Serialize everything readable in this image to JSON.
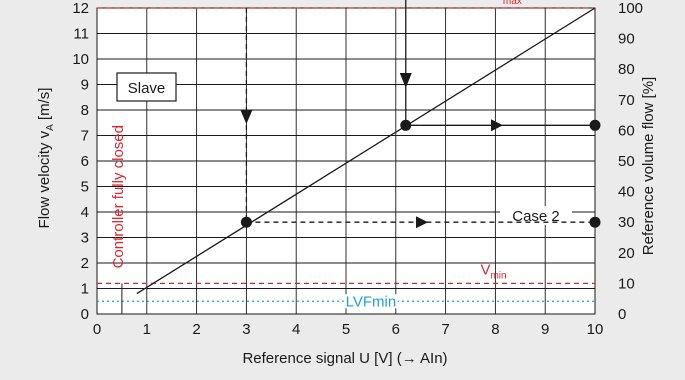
{
  "chart_data": {
    "type": "line",
    "xlabel": "Reference signal U [V] (→ AIn)",
    "ylabel_left": "Flow velocity v",
    "ylabel_left_subscript": "A",
    "ylabel_left_unit": " [m/s]",
    "ylabel_right": "Reference volume flow [%]",
    "xlim": [
      0,
      10
    ],
    "ylim_left": [
      0,
      12
    ],
    "ylim_right": [
      0,
      100
    ],
    "x_ticks": [
      0,
      1,
      2,
      3,
      4,
      5,
      6,
      7,
      8,
      9,
      10
    ],
    "y_left_ticks": [
      0,
      1,
      2,
      3,
      4,
      5,
      6,
      7,
      8,
      9,
      10,
      11,
      12
    ],
    "y_right_ticks": [
      0,
      10,
      20,
      30,
      40,
      50,
      60,
      70,
      80,
      90,
      100
    ],
    "grid": true,
    "colors": {
      "line": "#1a1a1a",
      "limit": "#d7282f",
      "lvf": "#1ea0d8",
      "controller_label": "#d7282f",
      "grid": "#1a1a1a",
      "background": "#ebebeb",
      "plot_background": "#ffffff"
    },
    "characteristic_line": {
      "x": [
        0.8,
        10
      ],
      "y": [
        0.8,
        12
      ]
    },
    "vmax": {
      "value": 12,
      "label": "V",
      "label_sub": "max"
    },
    "vmin": {
      "value": 1.2,
      "label": "V",
      "label_sub": "min"
    },
    "lvfmin": {
      "value": 0.5,
      "label": "LVFmin"
    },
    "controller_closed": {
      "x": 0.5,
      "label": "Controller fully closed"
    },
    "slave_label": "Slave",
    "case1": {
      "x": 6.2,
      "y": 7.4,
      "percent": 62
    },
    "case2": {
      "x": 3,
      "y": 3.6,
      "percent": 30,
      "label": "Case 2"
    }
  }
}
